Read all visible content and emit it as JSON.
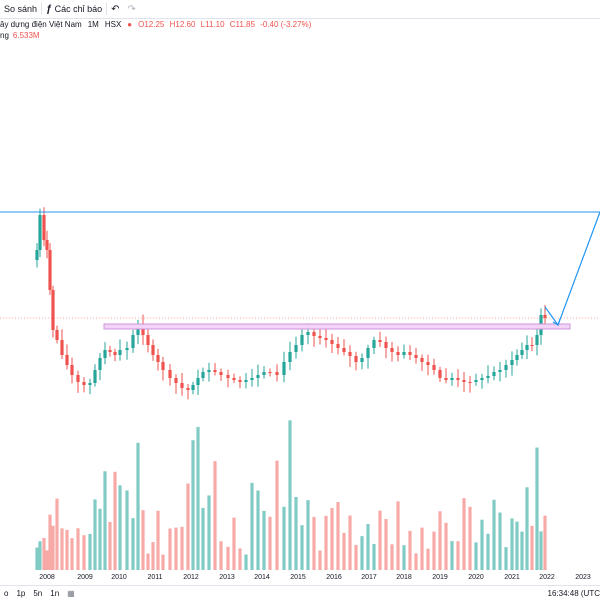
{
  "toolbar": {
    "compare_label": "So sánh",
    "indicators_label": "Các chỉ báo",
    "indicators_icon": "fx-icon",
    "undo_icon": "undo-icon",
    "redo_icon": "redo-icon"
  },
  "legend": {
    "name": "ây dựng điện Việt Nam",
    "interval": "1M",
    "exchange": "HSX",
    "open": "O12.25",
    "high": "H12.60",
    "low": "L11.10",
    "close": "C11.85",
    "change": "-0.40 (-3.27%)",
    "volume_label": "ng",
    "volume_value": "6.533M"
  },
  "bottom": {
    "ranges": [
      "o",
      "1p",
      "5n",
      "1n"
    ],
    "calendar_icon": "calendar-icon",
    "clock": "16:34:48 (UTC"
  },
  "colors": {
    "up": "#26a69a",
    "down": "#ef5350",
    "vol_up": "#80cbc4",
    "vol_down": "#f7a9a7",
    "trend": "#2196f3",
    "zone": "#ce93d8"
  },
  "chart_data": {
    "type": "candlestick",
    "x_ticks": [
      "2008",
      "2009",
      "2010",
      "2011",
      "2012",
      "2013",
      "2014",
      "2015",
      "2016",
      "2017",
      "2018",
      "2019",
      "2020",
      "2021",
      "2022",
      "2023"
    ],
    "annotations": {
      "horizontal_line": "resistance-line",
      "zone": "support-zone",
      "forecast_arrow": "projection-arrow"
    }
  }
}
